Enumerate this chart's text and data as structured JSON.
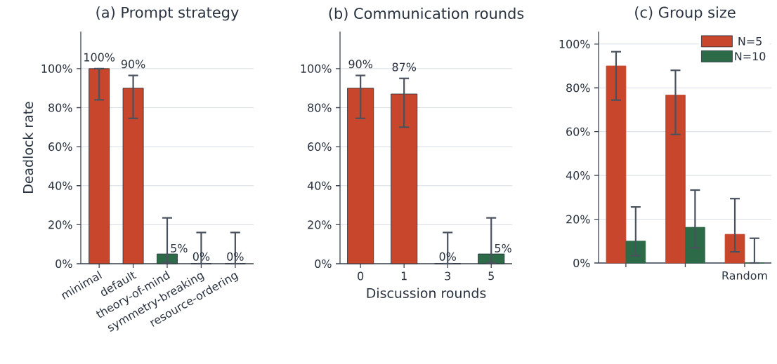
{
  "chart_data": [
    {
      "type": "bar",
      "title": "(a) Prompt strategy",
      "ylabel": "Deadlock rate",
      "categories": [
        "minimal",
        "default",
        "theory-of-mind",
        "symmetry-breaking",
        "resource-ordering"
      ],
      "values": [
        100,
        90,
        5,
        0,
        0
      ],
      "colors": [
        "#c8462c",
        "#c8462c",
        "#2d6a48",
        "#c8462c",
        "#c8462c"
      ],
      "errors": [
        [
          84,
          100
        ],
        [
          74.5,
          96.5
        ],
        [
          0.5,
          23.5
        ],
        [
          0,
          16
        ],
        [
          0,
          16
        ]
      ],
      "value_labels": [
        "100%",
        "90%",
        "5%",
        "0%",
        "0%"
      ],
      "ylim": [
        0,
        119
      ],
      "yticks": [
        {
          "value": 0,
          "label": "0%"
        },
        {
          "value": 20,
          "label": "20%"
        },
        {
          "value": 40,
          "label": "40%"
        },
        {
          "value": 60,
          "label": "60%"
        },
        {
          "value": 80,
          "label": "80%"
        },
        {
          "value": 100,
          "label": "100%"
        }
      ],
      "grid": "y",
      "legend": false
    },
    {
      "type": "bar",
      "title": "(b) Communication rounds",
      "xlabel": "Discussion rounds",
      "categories": [
        "0",
        "1",
        "3",
        "5"
      ],
      "values": [
        90,
        87,
        0,
        5
      ],
      "colors": [
        "#c8462c",
        "#c8462c",
        "#c8462c",
        "#2d6a48"
      ],
      "errors": [
        [
          74.5,
          96.5
        ],
        [
          70,
          95
        ],
        [
          0,
          16
        ],
        [
          0.5,
          23.5
        ]
      ],
      "value_labels": [
        "90%",
        "87%",
        "0%",
        "5%"
      ],
      "ylim": [
        0,
        119
      ],
      "yticks": [
        {
          "value": 0,
          "label": "0%"
        },
        {
          "value": 20,
          "label": "20%"
        },
        {
          "value": 40,
          "label": "40%"
        },
        {
          "value": 60,
          "label": "60%"
        },
        {
          "value": 80,
          "label": "80%"
        },
        {
          "value": 100,
          "label": "100%"
        }
      ],
      "grid": "y",
      "legend": false
    },
    {
      "type": "bar",
      "title": "(c) Group size",
      "categories": [
        null,
        null,
        "Random"
      ],
      "series": [
        {
          "name": "N=5",
          "color": "#c8462c",
          "values": [
            90,
            76.7,
            13.1
          ],
          "errors": [
            [
              74.4,
              96.5
            ],
            [
              58.7,
              88
            ],
            [
              5.1,
              29.4
            ]
          ]
        },
        {
          "name": "N=10",
          "color": "#2d6a48",
          "values": [
            10,
            16.3,
            0
          ],
          "errors": [
            [
              3.3,
              25.6
            ],
            [
              7,
              33.3
            ],
            [
              0,
              11.3
            ]
          ]
        }
      ],
      "ylim": [
        0,
        105.7
      ],
      "yticks": [
        {
          "value": 0,
          "label": "0%"
        },
        {
          "value": 20,
          "label": "20%"
        },
        {
          "value": 40,
          "label": "40%"
        },
        {
          "value": 60,
          "label": "60%"
        },
        {
          "value": 80,
          "label": "80%"
        },
        {
          "value": 100,
          "label": "100%"
        }
      ],
      "grid": "y",
      "legend": "top right"
    }
  ]
}
